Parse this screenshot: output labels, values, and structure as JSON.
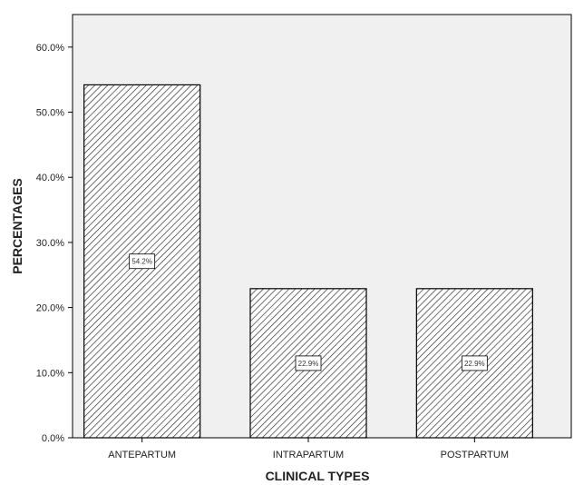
{
  "chart_data": {
    "type": "bar",
    "title": "",
    "xlabel": "CLINICAL TYPES",
    "ylabel": "PERCENTAGES",
    "categories": [
      "ANTEPARTUM",
      "INTRAPARTUM",
      "POSTPARTUM"
    ],
    "values": [
      54.2,
      22.9,
      22.9
    ],
    "data_labels": [
      "54.2%",
      "22.9%",
      "22.9%"
    ],
    "ylim": [
      0,
      65
    ],
    "y_ticks": [
      0,
      10,
      20,
      30,
      40,
      50,
      60
    ],
    "y_tick_labels": [
      "0.0%",
      "10.0%",
      "20.0%",
      "30.0%",
      "40.0%",
      "50.0%",
      "60.0%"
    ],
    "grid": false,
    "legend": "none",
    "colors": {
      "plot_background": "#f0f0f0",
      "bar_fill": "#ffffff",
      "hatch": "#222222",
      "outline": "#000000"
    }
  }
}
